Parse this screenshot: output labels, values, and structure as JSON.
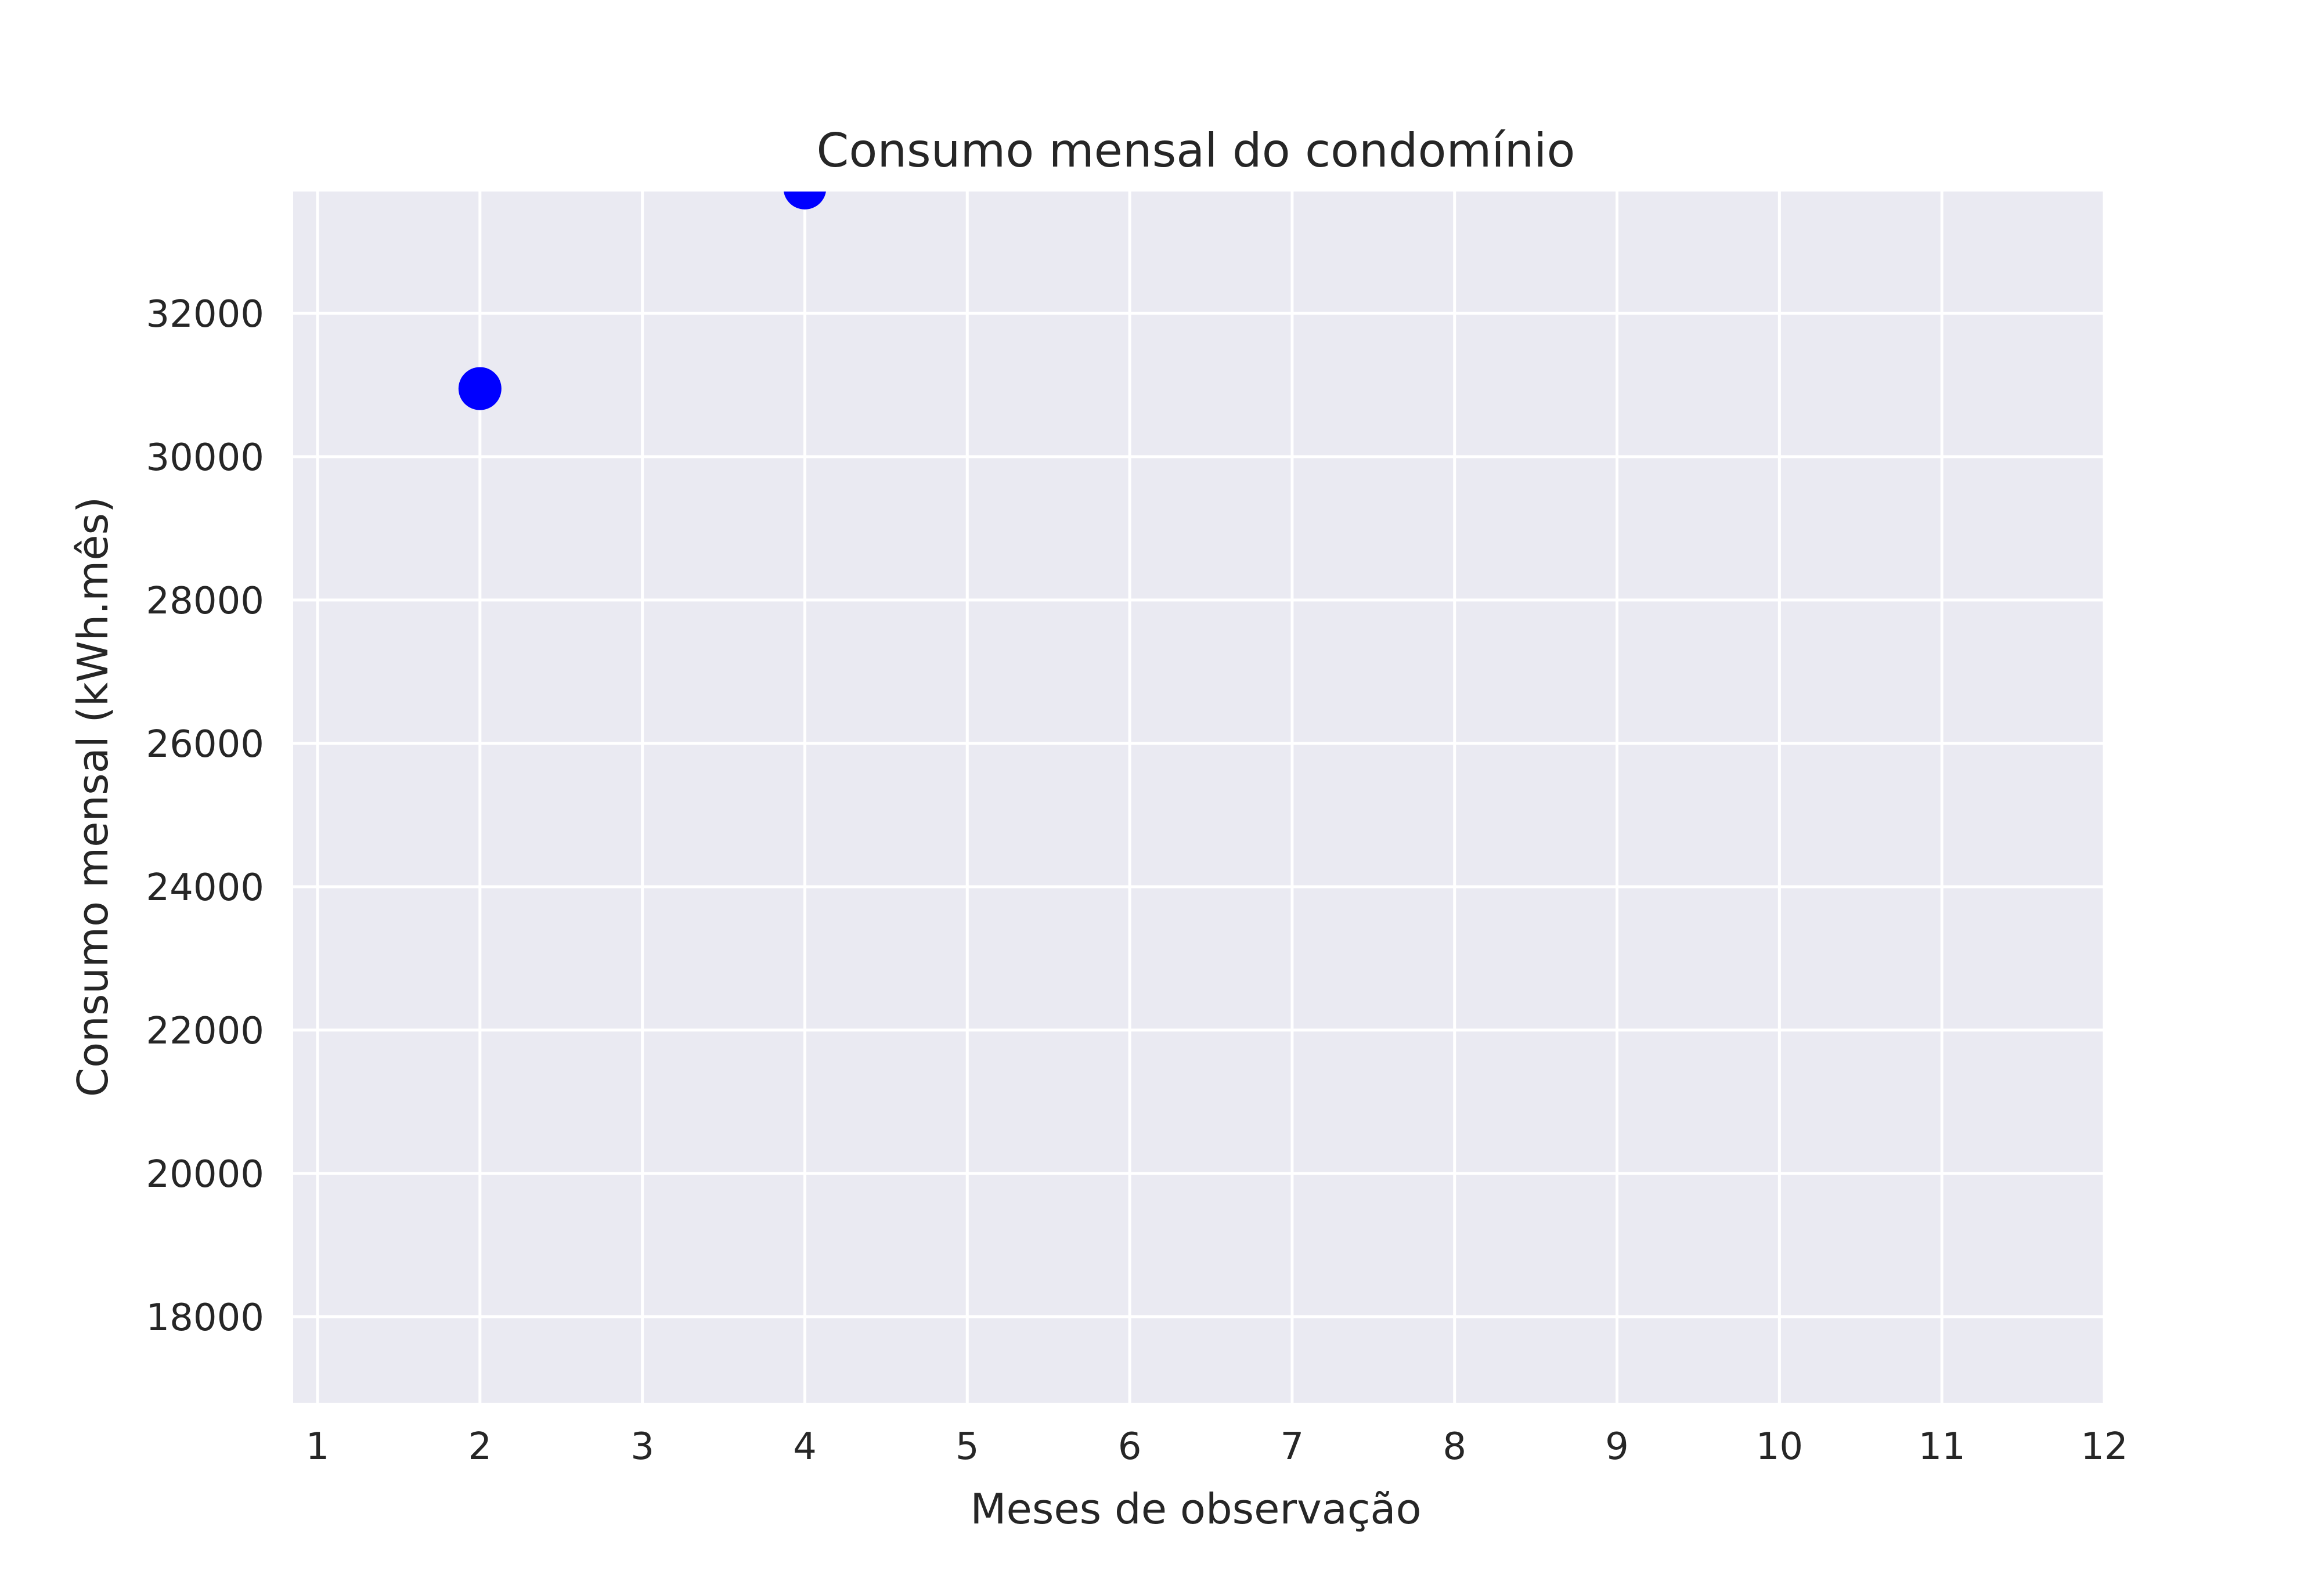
{
  "chart_data": {
    "type": "scatter",
    "title": "Consumo mensal do condomínio",
    "xlabel": "Meses de observação",
    "ylabel": "Consumo mensal (kWh.mês)",
    "xlim": [
      0.85,
      12
    ],
    "ylim": [
      16800,
      33700
    ],
    "xticks": [
      1,
      2,
      3,
      4,
      5,
      6,
      7,
      8,
      9,
      10,
      11,
      12
    ],
    "yticks": [
      18000,
      20000,
      22000,
      24000,
      26000,
      28000,
      30000,
      32000
    ],
    "grid": true,
    "series": [
      {
        "x": [
          2,
          4
        ],
        "y": [
          30950,
          33750
        ],
        "color": "#0000ff"
      }
    ],
    "background_color": "#eaeaf2",
    "grid_color": "#ffffff"
  }
}
